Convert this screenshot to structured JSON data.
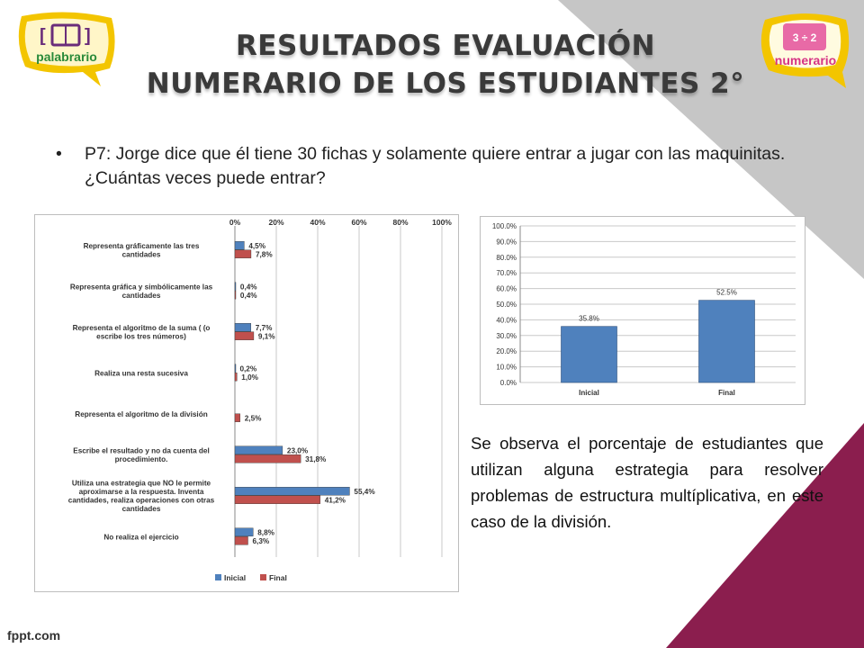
{
  "slide": {
    "title": "RESULTADOS EVALUACIÓN NUMERARIO DE LOS ESTUDIANTES 2°",
    "bullet_marker": "•",
    "bullet_text": "P7: Jorge dice que él tiene 30 fichas y solamente quiere entrar a jugar con las maquinitas. ¿Cuántas veces puede entrar?",
    "description": "Se observa el porcentaje de estudiantes que utilizan alguna estrategia para resolver problemas de estructura multíplicativa, en este caso de la división.",
    "footer": "fppt.com",
    "logo_left_text": "palabrario",
    "logo_right_text": "numerario"
  },
  "colors": {
    "inicial": "#4f81bd",
    "final": "#c0504d",
    "title": "#3a3a3a",
    "accent_maroon": "#8b1e4e",
    "gray_shape": "#c6c6c6"
  },
  "chart_data": [
    {
      "type": "bar",
      "orientation": "horizontal",
      "categories": [
        "Representa gráficamente las tres cantidades",
        "Representa gráfica y simbólicamente las cantidades",
        "Representa el algoritmo de la suma ( (o escribe los tres números)",
        "Realiza una resta sucesiva",
        "Representa el algoritmo de la división",
        "Escribe el resultado y no da cuenta del procedimiento.",
        "Utiliza una estrategia que NO le permite aproximarse a la respuesta. Inventa cantidades, realiza operaciones con otras cantidades",
        "No realiza el ejercicio"
      ],
      "series": [
        {
          "name": "Inicial",
          "values": [
            4.5,
            0.4,
            7.7,
            0.2,
            null,
            23.0,
            55.4,
            8.8
          ],
          "labels": [
            "4,5%",
            "0,4%",
            "7,7%",
            "0,2%",
            "",
            "23,0%",
            "55,4%",
            "8,8%"
          ]
        },
        {
          "name": "Final",
          "values": [
            7.8,
            0.4,
            9.1,
            1.0,
            2.5,
            31.8,
            41.2,
            6.3
          ],
          "labels": [
            "7,8%",
            "0,4%",
            "9,1%",
            "1,0%",
            "2,5%",
            "31,8%",
            "41,2%",
            "6,3%"
          ]
        }
      ],
      "xlim": [
        0,
        100
      ],
      "x_ticks": [
        "0%",
        "20%",
        "40%",
        "60%",
        "80%",
        "100%"
      ],
      "legend": "bottom",
      "grid": true
    },
    {
      "type": "bar",
      "categories": [
        "Inicial",
        "Final"
      ],
      "values": [
        35.8,
        52.5
      ],
      "labels": [
        "35.8%",
        "52.5%"
      ],
      "ylim": [
        0,
        100
      ],
      "y_ticks": [
        "0.0%",
        "10.0%",
        "20.0%",
        "30.0%",
        "40.0%",
        "50.0%",
        "60.0%",
        "70.0%",
        "80.0%",
        "90.0%",
        "100.0%"
      ],
      "grid": true
    }
  ]
}
